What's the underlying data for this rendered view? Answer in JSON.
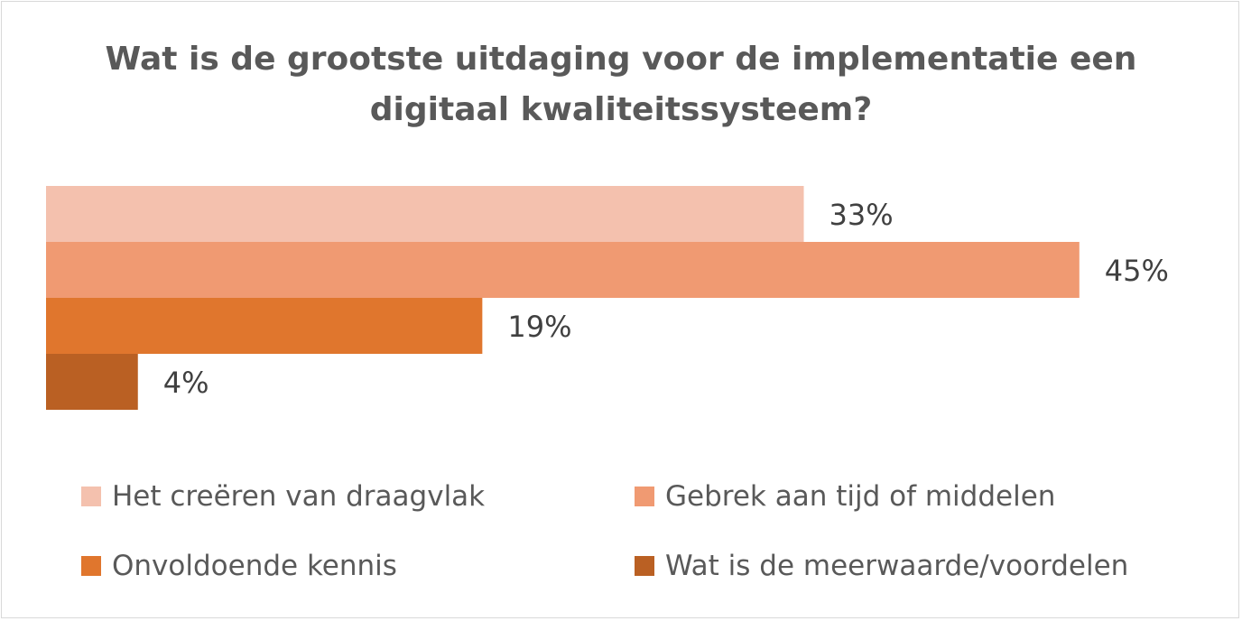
{
  "chart_data": {
    "type": "bar",
    "orientation": "horizontal",
    "title": "Wat is de grootste uitdaging voor de implementatie een\ndigitaal kwaliteitssysteem?",
    "categories": [
      "Het creëren van draagvlak",
      "Gebrek aan tijd of middelen",
      "Onvoldoende kennis",
      "Wat is de meerwaarde/voordelen"
    ],
    "values": [
      33,
      45,
      19,
      4
    ],
    "data_labels": [
      "33%",
      "45%",
      "19%",
      "4%"
    ],
    "colors": [
      "#F4C1AE",
      "#F09A72",
      "#E0762D",
      "#BA6023"
    ],
    "xlim": [
      0,
      45
    ],
    "grid": false,
    "legend": "bottom"
  }
}
